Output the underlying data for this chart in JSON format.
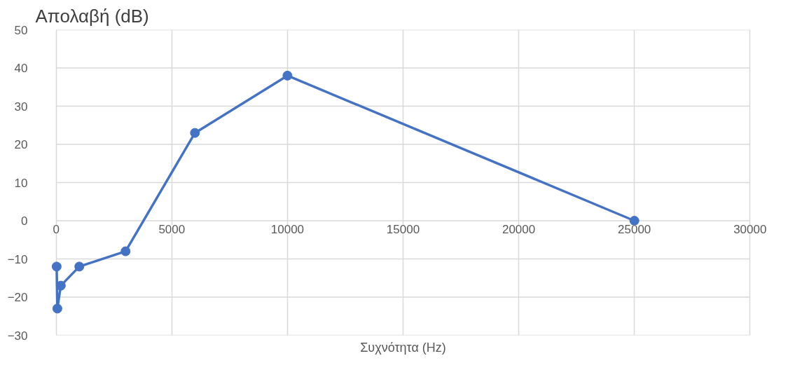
{
  "chart_data": {
    "type": "line",
    "title": "Απολαβή (dB)",
    "xlabel": "Συχνότητα (Hz)",
    "x": [
      20,
      50,
      200,
      1000,
      3000,
      6000,
      10000,
      25000
    ],
    "series": [
      {
        "color": "#4472c4",
        "values": [
          -12,
          -23,
          -17,
          -12,
          -8,
          23,
          38,
          0
        ]
      }
    ],
    "xlim": [
      0,
      30000
    ],
    "xticks": [
      0,
      5000,
      10000,
      15000,
      20000,
      25000,
      30000
    ],
    "ylim": [
      -30,
      50
    ],
    "yticks": [
      -30,
      -20,
      -10,
      0,
      10,
      20,
      30,
      40,
      50
    ],
    "grid": true,
    "marker": "circle",
    "line_style": "solid"
  }
}
